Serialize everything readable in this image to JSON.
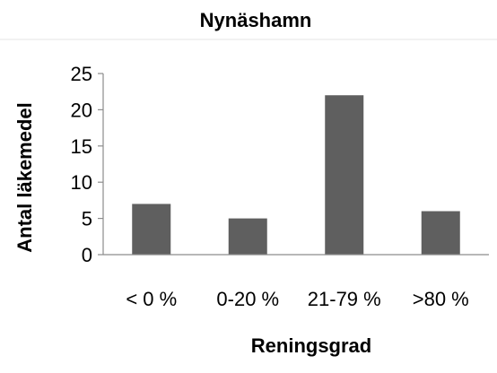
{
  "chart_data": {
    "type": "bar",
    "title": "Nynäshamn",
    "xlabel": "Reningsgrad",
    "ylabel": "Antal läkemedel",
    "categories": [
      "< 0 %",
      "0-20 %",
      "21-79 %",
      ">80 %"
    ],
    "values": [
      7,
      5,
      22,
      6
    ],
    "ylim": [
      0,
      25
    ],
    "yticks": [
      0,
      5,
      10,
      15,
      20,
      25
    ],
    "grid": false,
    "legend": "none",
    "bar_color": "#5f5f5f",
    "axis_color": "#8c8c8c"
  }
}
